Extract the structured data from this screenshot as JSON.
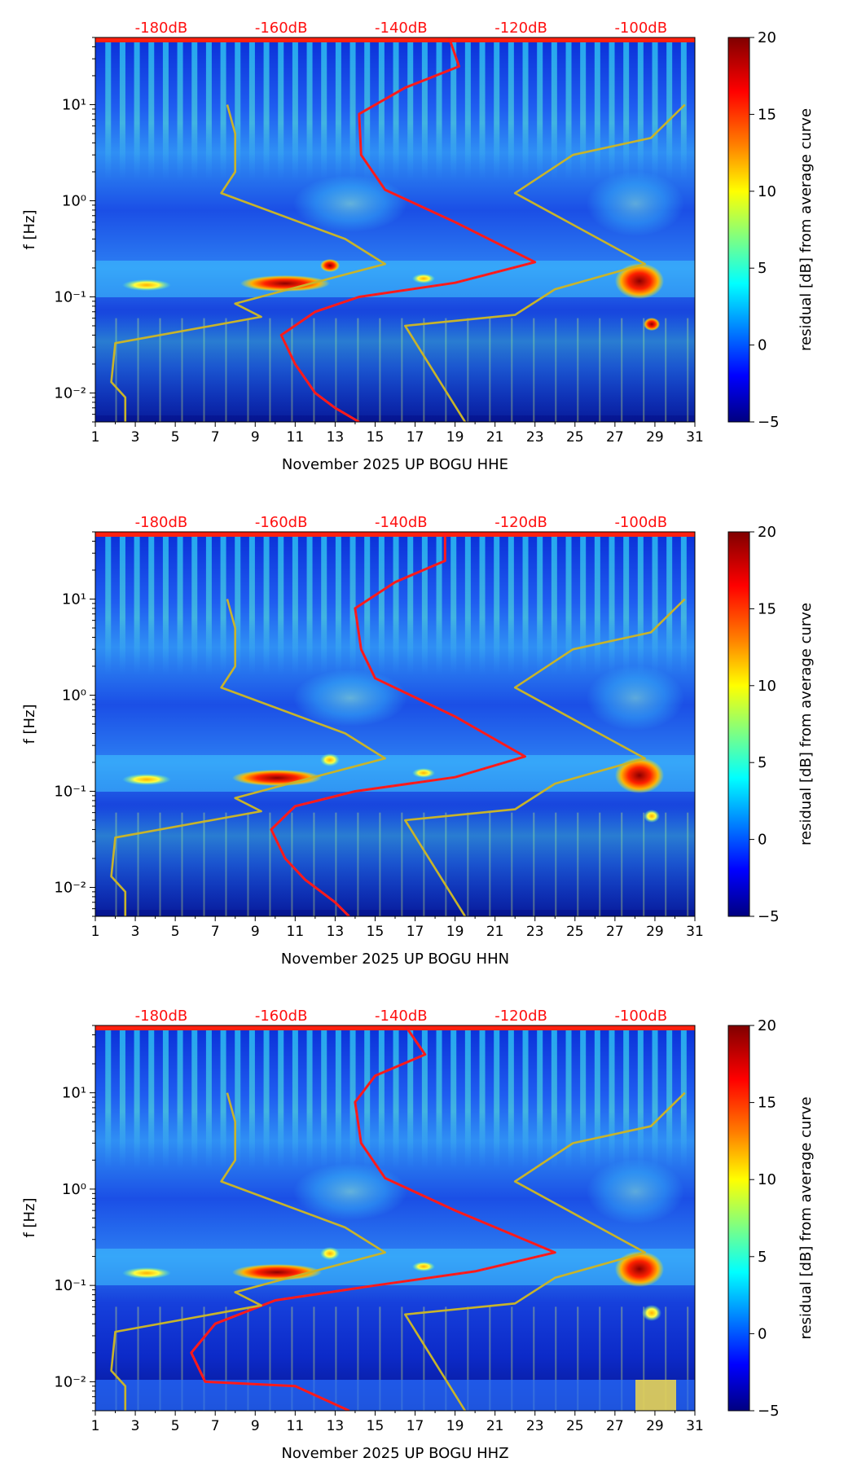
{
  "figure": {
    "colorbar_label": "residual [dB] from average curve",
    "colorbar_ticks": [
      "20",
      "15",
      "10",
      "5",
      "0",
      "−5"
    ],
    "colorbar_colors": [
      "#800000",
      "#ff0000",
      "#ff8000",
      "#ffff00",
      "#80ff80",
      "#00ffff",
      "#0080ff",
      "#0000ff",
      "#000080"
    ],
    "db_labels": [
      "-180dB",
      "-160dB",
      "-140dB",
      "-120dB",
      "-100dB"
    ],
    "x_ticks": [
      "1",
      "3",
      "5",
      "7",
      "9",
      "11",
      "13",
      "15",
      "17",
      "19",
      "21",
      "23",
      "25",
      "27",
      "29",
      "31"
    ],
    "y_ticks": [
      "10⁻²",
      "10⁻¹",
      "10⁰",
      "10¹"
    ],
    "ylabel": "f [Hz]"
  },
  "chart_data": [
    {
      "type": "heatmap",
      "xlabel": "November 2025 UP BOGU  HHE",
      "ylabel": "f [Hz]",
      "xlim": [
        1,
        31
      ],
      "ylim": [
        0.005,
        50
      ],
      "colorbar_range": [
        -5,
        20
      ],
      "top_axis_dB": [
        -180,
        -160,
        -140,
        -120,
        -100
      ],
      "series": [
        {
          "name": "average PSD curve",
          "color": "#ff1a1a",
          "points": [
            [
              18.7,
              50
            ],
            [
              19.2,
              25
            ],
            [
              16.5,
              15
            ],
            [
              14.2,
              8
            ],
            [
              14.3,
              3
            ],
            [
              15.5,
              1.3
            ],
            [
              19,
              0.6
            ],
            [
              23,
              0.23
            ],
            [
              19,
              0.14
            ],
            [
              14.2,
              0.1
            ],
            [
              12,
              0.07
            ],
            [
              10.3,
              0.04
            ],
            [
              11,
              0.02
            ],
            [
              12,
              0.01
            ],
            [
              13,
              0.007
            ],
            [
              14.2,
              0.005
            ]
          ]
        },
        {
          "name": "NHNM",
          "color": "#c8b42a",
          "points": [
            [
              30.5,
              10
            ],
            [
              28.8,
              4.5
            ],
            [
              24.9,
              3
            ],
            [
              22,
              1.2
            ],
            [
              28.5,
              0.22
            ],
            [
              24,
              0.12
            ],
            [
              22,
              0.065
            ],
            [
              16.5,
              0.05
            ],
            [
              19.5,
              0.005
            ]
          ]
        },
        {
          "name": "NLNM",
          "color": "#c8b42a",
          "points": [
            [
              7.6,
              10
            ],
            [
              8,
              5
            ],
            [
              8,
              2
            ],
            [
              7.3,
              1.2
            ],
            [
              13.5,
              0.4
            ],
            [
              15.5,
              0.22
            ],
            [
              10,
              0.11
            ],
            [
              8,
              0.085
            ],
            [
              9.3,
              0.062
            ],
            [
              2,
              0.033
            ],
            [
              1.8,
              0.013
            ],
            [
              2.5,
              0.009
            ],
            [
              2.5,
              0.005
            ]
          ]
        }
      ]
    },
    {
      "type": "heatmap",
      "xlabel": "November 2025 UP BOGU  HHN",
      "ylabel": "f [Hz]",
      "xlim": [
        1,
        31
      ],
      "ylim": [
        0.005,
        50
      ],
      "colorbar_range": [
        -5,
        20
      ],
      "top_axis_dB": [
        -180,
        -160,
        -140,
        -120,
        -100
      ],
      "series": [
        {
          "name": "average PSD curve",
          "color": "#ff1a1a",
          "points": [
            [
              18.5,
              50
            ],
            [
              18.5,
              25
            ],
            [
              16,
              15
            ],
            [
              14,
              8
            ],
            [
              14.3,
              3
            ],
            [
              15,
              1.5
            ],
            [
              19,
              0.6
            ],
            [
              22.5,
              0.23
            ],
            [
              19,
              0.14
            ],
            [
              14,
              0.1
            ],
            [
              11,
              0.07
            ],
            [
              9.8,
              0.04
            ],
            [
              10.5,
              0.02
            ],
            [
              11.5,
              0.012
            ],
            [
              13,
              0.007
            ],
            [
              13.7,
              0.005
            ]
          ]
        },
        {
          "name": "NHNM",
          "color": "#c8b42a",
          "points": [
            [
              30.5,
              10
            ],
            [
              28.8,
              4.5
            ],
            [
              24.9,
              3
            ],
            [
              22,
              1.2
            ],
            [
              28.5,
              0.22
            ],
            [
              24,
              0.12
            ],
            [
              22,
              0.065
            ],
            [
              16.5,
              0.05
            ],
            [
              19.5,
              0.005
            ]
          ]
        },
        {
          "name": "NLNM",
          "color": "#c8b42a",
          "points": [
            [
              7.6,
              10
            ],
            [
              8,
              5
            ],
            [
              8,
              2
            ],
            [
              7.3,
              1.2
            ],
            [
              13.5,
              0.4
            ],
            [
              15.5,
              0.22
            ],
            [
              10,
              0.11
            ],
            [
              8,
              0.085
            ],
            [
              9.3,
              0.062
            ],
            [
              2,
              0.033
            ],
            [
              1.8,
              0.013
            ],
            [
              2.5,
              0.009
            ],
            [
              2.5,
              0.005
            ]
          ]
        }
      ]
    },
    {
      "type": "heatmap",
      "xlabel": "November 2025 UP BOGU  HHZ",
      "ylabel": "f [Hz]",
      "xlim": [
        1,
        31
      ],
      "ylim": [
        0.005,
        50
      ],
      "colorbar_range": [
        -5,
        20
      ],
      "top_axis_dB": [
        -180,
        -160,
        -140,
        -120,
        -100
      ],
      "series": [
        {
          "name": "average PSD curve",
          "color": "#ff1a1a",
          "points": [
            [
              16.5,
              50
            ],
            [
              17.5,
              25
            ],
            [
              15,
              15
            ],
            [
              14,
              8
            ],
            [
              14.3,
              3
            ],
            [
              15.5,
              1.3
            ],
            [
              19,
              0.6
            ],
            [
              24,
              0.22
            ],
            [
              20,
              0.14
            ],
            [
              15,
              0.1
            ],
            [
              10,
              0.07
            ],
            [
              7,
              0.04
            ],
            [
              5.8,
              0.02
            ],
            [
              6.5,
              0.01
            ],
            [
              11,
              0.009
            ],
            [
              13.7,
              0.005
            ]
          ]
        },
        {
          "name": "NHNM",
          "color": "#c8b42a",
          "points": [
            [
              30.5,
              10
            ],
            [
              28.8,
              4.5
            ],
            [
              24.9,
              3
            ],
            [
              22,
              1.2
            ],
            [
              28.5,
              0.22
            ],
            [
              24,
              0.12
            ],
            [
              22,
              0.065
            ],
            [
              16.5,
              0.05
            ],
            [
              19.5,
              0.005
            ]
          ]
        },
        {
          "name": "NLNM",
          "color": "#c8b42a",
          "points": [
            [
              7.6,
              10
            ],
            [
              8,
              5
            ],
            [
              8,
              2
            ],
            [
              7.3,
              1.2
            ],
            [
              13.5,
              0.4
            ],
            [
              15.5,
              0.22
            ],
            [
              10,
              0.11
            ],
            [
              8,
              0.085
            ],
            [
              9.3,
              0.062
            ],
            [
              2,
              0.033
            ],
            [
              1.8,
              0.013
            ],
            [
              2.5,
              0.009
            ],
            [
              2.5,
              0.005
            ]
          ]
        }
      ]
    }
  ]
}
